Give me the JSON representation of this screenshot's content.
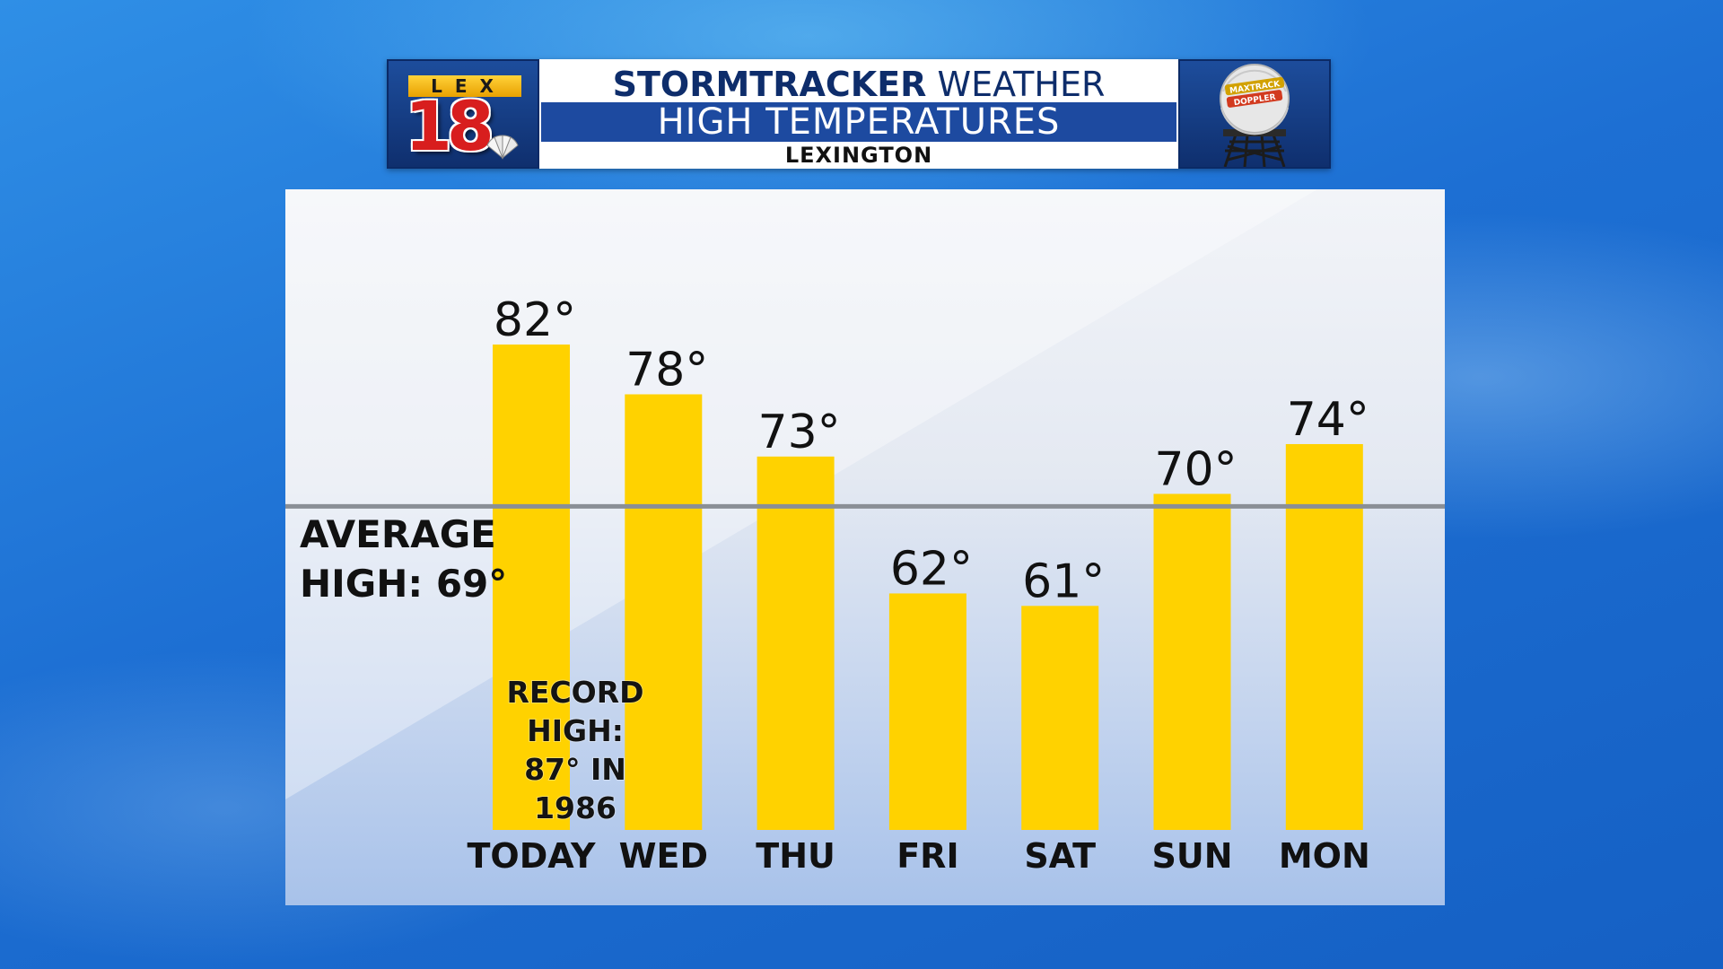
{
  "header": {
    "logo_letters": "LEX",
    "logo_number": "18",
    "title_bold": "STORMTRACKER",
    "title_rest": "WEATHER",
    "subtitle": "HIGH TEMPERATURES",
    "location": "LEXINGTON",
    "radar_badge_line1": "MAXTRACK",
    "radar_badge_line2": "DOPPLER"
  },
  "average": {
    "line1": "AVERAGE",
    "line2": "HIGH: 69°",
    "value": 69
  },
  "record": {
    "line1": "RECORD",
    "line2": "HIGH:",
    "line3": "87° IN",
    "line4": "1986"
  },
  "colors": {
    "bar": "#FFD200",
    "average_line": "#8a8f96",
    "header_blue": "#1d4aa0",
    "title_text": "#0e2d6b"
  },
  "chart_data": {
    "type": "bar",
    "title": "HIGH TEMPERATURES",
    "categories": [
      "TODAY",
      "WED",
      "THU",
      "FRI",
      "SAT",
      "SUN",
      "MON"
    ],
    "values": [
      82,
      78,
      73,
      62,
      61,
      70,
      74
    ],
    "value_labels": [
      "82°",
      "78°",
      "73°",
      "62°",
      "61°",
      "70°",
      "74°"
    ],
    "reference_line": 69,
    "ylim": [
      40,
      90
    ],
    "unit": "°F",
    "grid": false,
    "legend": "none"
  }
}
